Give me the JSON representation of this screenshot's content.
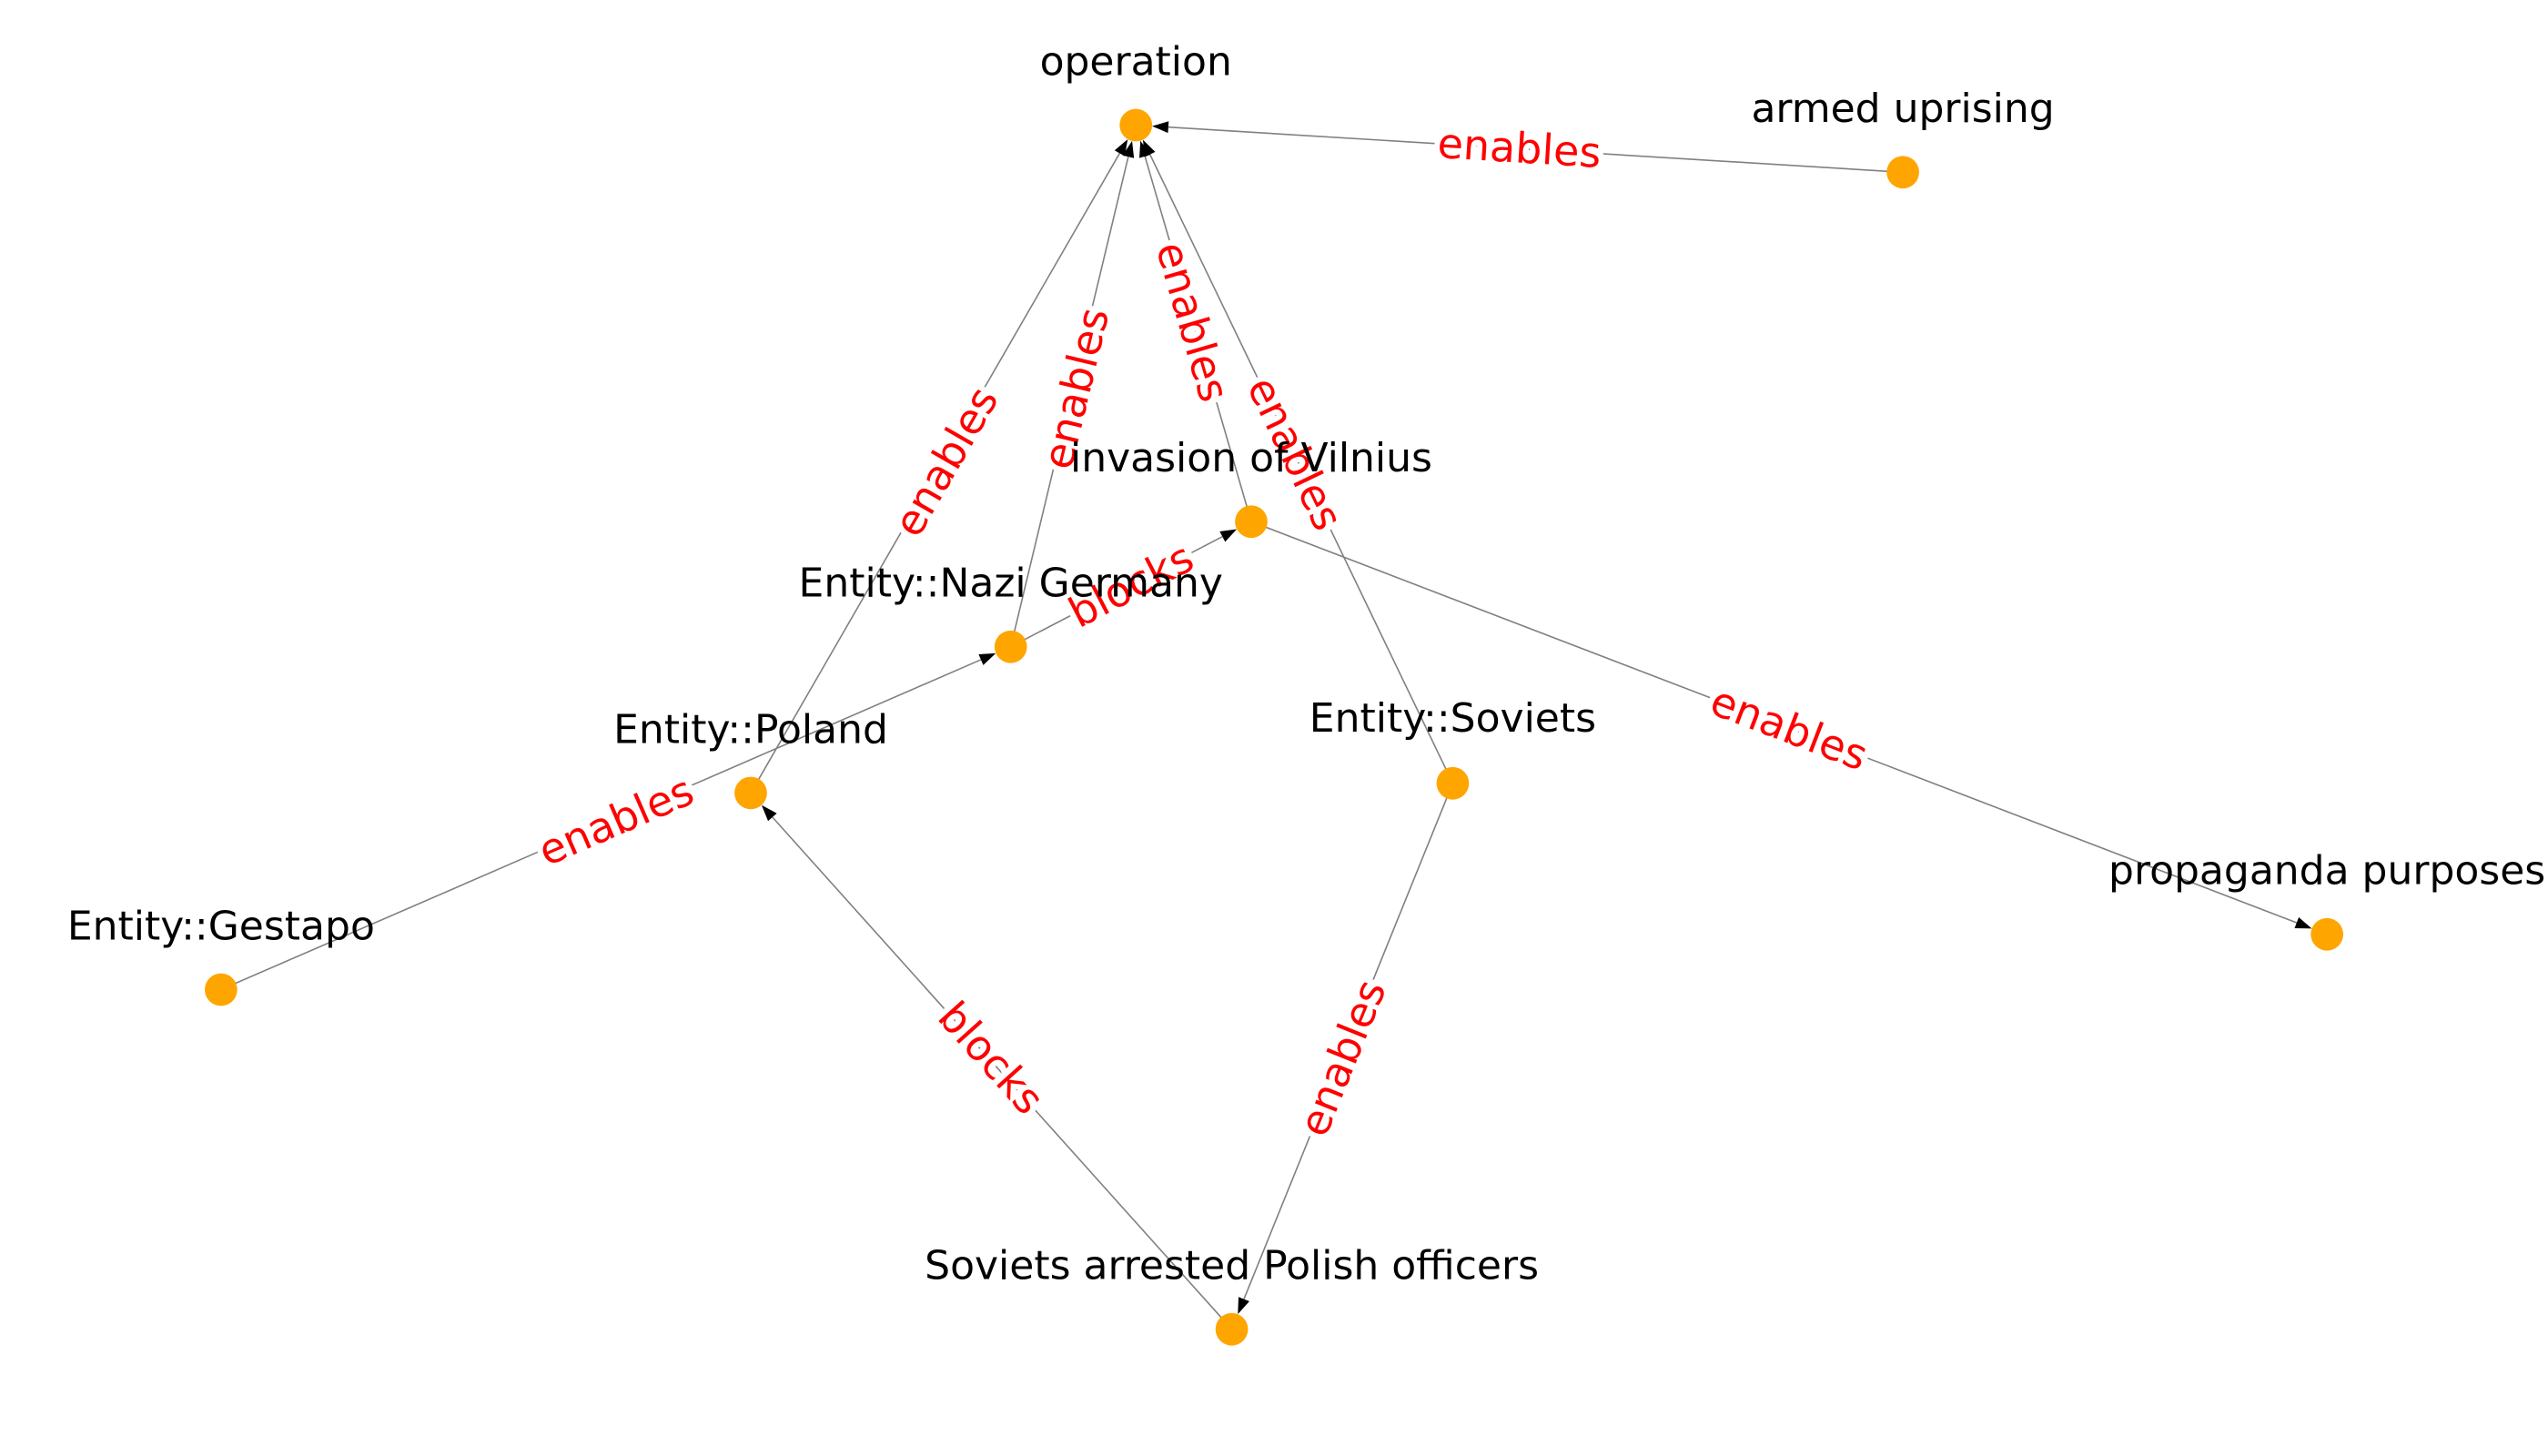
{
  "colors": {
    "node": "#ffa500",
    "edge": "#808080",
    "edge_label": "#ff0000",
    "arrow": "#000000",
    "label": "#000000",
    "background": "#ffffff"
  },
  "nodes": [
    {
      "id": "operation",
      "label": "operation"
    },
    {
      "id": "armed_uprising",
      "label": "armed uprising"
    },
    {
      "id": "invasion_of_vilnius",
      "label": "invasion of Vilnius"
    },
    {
      "id": "nazi_germany",
      "label": "Entity::Nazi Germany"
    },
    {
      "id": "poland",
      "label": "Entity::Poland"
    },
    {
      "id": "soviets",
      "label": "Entity::Soviets"
    },
    {
      "id": "gestapo",
      "label": "Entity::Gestapo"
    },
    {
      "id": "propaganda_purposes",
      "label": "propaganda purposes"
    },
    {
      "id": "soviets_arrested",
      "label": "Soviets arrested Polish officers"
    }
  ],
  "edges": [
    {
      "source": "armed_uprising",
      "target": "operation",
      "label": "enables"
    },
    {
      "source": "poland",
      "target": "operation",
      "label": "enables"
    },
    {
      "source": "nazi_germany",
      "target": "operation",
      "label": "enables"
    },
    {
      "source": "invasion_of_vilnius",
      "target": "operation",
      "label": "enables"
    },
    {
      "source": "soviets",
      "target": "operation",
      "label": "enables"
    },
    {
      "source": "nazi_germany",
      "target": "invasion_of_vilnius",
      "label": "blocks"
    },
    {
      "source": "gestapo",
      "target": "nazi_germany",
      "label": "enables"
    },
    {
      "source": "invasion_of_vilnius",
      "target": "propaganda_purposes",
      "label": "enables"
    },
    {
      "source": "soviets",
      "target": "soviets_arrested",
      "label": "enables"
    },
    {
      "source": "soviets_arrested",
      "target": "poland",
      "label": "blocks"
    }
  ]
}
